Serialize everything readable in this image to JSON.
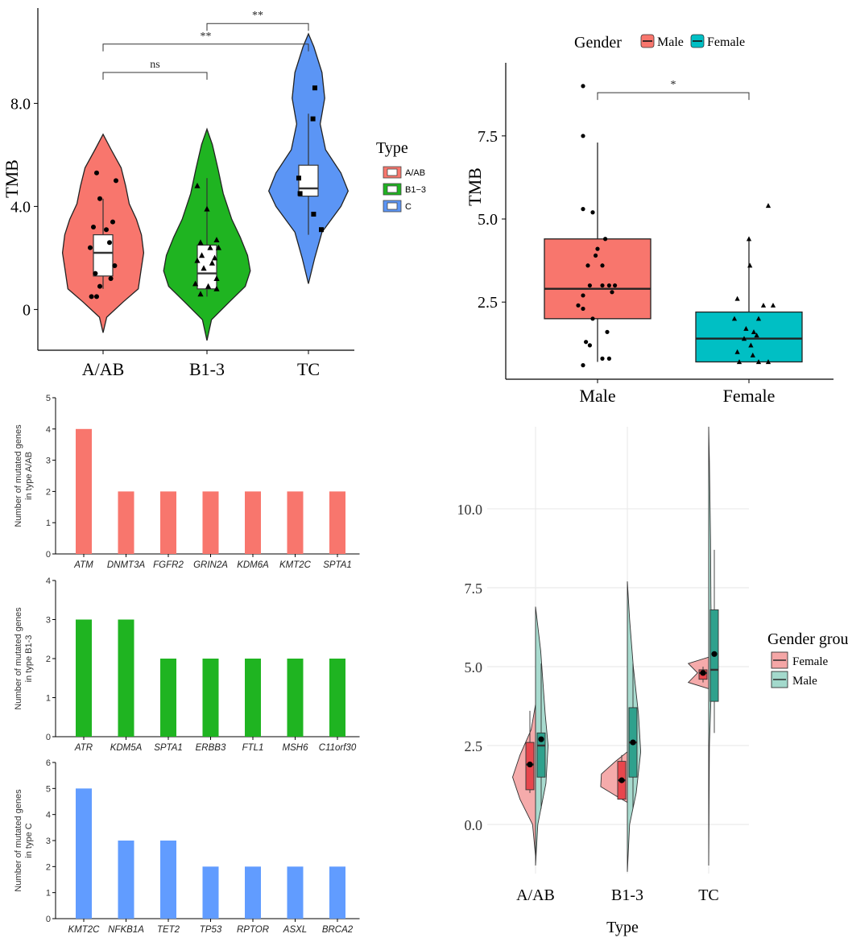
{
  "chart_data": [
    {
      "id": "A",
      "type": "violin",
      "ylabel": "TMB",
      "xlabel": "",
      "ylim": [
        -0.8,
        10.7
      ],
      "yticks": [
        "0",
        "4.0",
        "8.0"
      ],
      "ytick_values": [
        0,
        4,
        8
      ],
      "categories": [
        "A/AB",
        "B1-3",
        "TC"
      ],
      "colors": [
        "#F8766D",
        "#1FB421",
        "#5B95F5"
      ],
      "legend": {
        "title": "Type",
        "entries": [
          "A/AB",
          "B1−3",
          "C"
        ],
        "placement": "right"
      },
      "violins": [
        {
          "shape": [
            [
              -0.9,
              0
            ],
            [
              -0.3,
              0.08
            ],
            [
              0.3,
              0.45
            ],
            [
              0.8,
              0.78
            ],
            [
              1.5,
              0.84
            ],
            [
              2.2,
              0.9
            ],
            [
              2.9,
              0.85
            ],
            [
              3.5,
              0.74
            ],
            [
              4.1,
              0.58
            ],
            [
              4.8,
              0.5
            ],
            [
              5.5,
              0.4
            ],
            [
              6.2,
              0.18
            ],
            [
              6.8,
              0
            ]
          ]
        },
        {
          "shape": [
            [
              -1.2,
              0
            ],
            [
              -0.4,
              0.1
            ],
            [
              0.3,
              0.5
            ],
            [
              0.9,
              0.85
            ],
            [
              1.5,
              0.96
            ],
            [
              2.1,
              0.9
            ],
            [
              2.8,
              0.74
            ],
            [
              3.5,
              0.55
            ],
            [
              4.5,
              0.36
            ],
            [
              5.5,
              0.24
            ],
            [
              6.4,
              0.12
            ],
            [
              7.0,
              0
            ]
          ]
        },
        {
          "shape": [
            [
              1.0,
              0
            ],
            [
              2.0,
              0.14
            ],
            [
              3.0,
              0.3
            ],
            [
              4.0,
              0.72
            ],
            [
              4.6,
              0.88
            ],
            [
              5.3,
              0.72
            ],
            [
              6.2,
              0.38
            ],
            [
              7.2,
              0.26
            ],
            [
              8.2,
              0.36
            ],
            [
              9.2,
              0.3
            ],
            [
              10.2,
              0.12
            ],
            [
              10.7,
              0
            ]
          ]
        }
      ],
      "boxes": [
        {
          "q1": 1.3,
          "median": 2.2,
          "q3": 2.9,
          "wmin": 0.8,
          "wmax": 4.3
        },
        {
          "q1": 0.8,
          "median": 1.4,
          "q3": 2.5,
          "wmin": 0.5,
          "wmax": 5.1
        },
        {
          "q1": 4.4,
          "median": 4.7,
          "q3": 5.6,
          "wmin": 2.9,
          "wmax": 7.6
        }
      ],
      "points": [
        [
          [
            -0.1,
            5.3
          ],
          [
            0.2,
            5.0
          ],
          [
            -0.05,
            4.3
          ],
          [
            -0.15,
            3.2
          ],
          [
            0.15,
            3.4
          ],
          [
            0.05,
            3.1
          ],
          [
            -0.2,
            2.4
          ],
          [
            0.1,
            2.6
          ],
          [
            0.18,
            1.7
          ],
          [
            -0.12,
            1.4
          ],
          [
            0.12,
            1.2
          ],
          [
            -0.05,
            0.9
          ],
          [
            -0.18,
            0.5
          ],
          [
            -0.1,
            0.5
          ]
        ],
        [
          [
            -0.15,
            4.8
          ],
          [
            0,
            3.9
          ],
          [
            0.15,
            2.7
          ],
          [
            -0.1,
            2.6
          ],
          [
            0.05,
            2.4
          ],
          [
            0.18,
            2.4
          ],
          [
            -0.08,
            2.1
          ],
          [
            0.12,
            2.0
          ],
          [
            -0.15,
            1.9
          ],
          [
            0.08,
            1.8
          ],
          [
            -0.05,
            1.6
          ],
          [
            0.15,
            1.2
          ],
          [
            -0.18,
            1.0
          ],
          [
            0.02,
            0.9
          ],
          [
            0.15,
            0.8
          ],
          [
            -0.1,
            0.6
          ]
        ],
        [
          [
            0.1,
            8.6
          ],
          [
            0.07,
            7.4
          ],
          [
            -0.15,
            5.1
          ],
          [
            -0.13,
            4.5
          ],
          [
            0.08,
            3.7
          ],
          [
            0.2,
            3.1
          ]
        ]
      ],
      "point_shapes": [
        "circle",
        "triangle",
        "square"
      ],
      "comparisons": [
        {
          "from": 0,
          "to": 1,
          "y": 9.2,
          "label": "ns"
        },
        {
          "from": 0,
          "to": 2,
          "y": 10.3,
          "label": "**"
        },
        {
          "from": 1,
          "to": 2,
          "y": 11.1,
          "label": "**"
        }
      ]
    },
    {
      "id": "B",
      "type": "box",
      "ylabel": "TMB",
      "xlabel": "",
      "ylim": [
        0.3,
        9.7
      ],
      "yticks": [
        "2.5",
        "5.0",
        "7.5"
      ],
      "ytick_values": [
        2.5,
        5.0,
        7.5
      ],
      "categories": [
        "Male",
        "Female"
      ],
      "colors": [
        "#F8766D",
        "#00BFC4"
      ],
      "legend": {
        "title": "Gender",
        "entries": [
          "Male",
          "Female"
        ],
        "placement": "top"
      },
      "boxes": [
        {
          "q1": 2.0,
          "median": 2.9,
          "q3": 4.4,
          "wmin": 0.7,
          "wmax": 7.3
        },
        {
          "q1": 0.7,
          "median": 1.4,
          "q3": 2.2,
          "wmin": 0.7,
          "wmax": 4.4
        }
      ],
      "points": [
        [
          [
            -0.15,
            9.0
          ],
          [
            -0.15,
            7.5
          ],
          [
            -0.15,
            5.3
          ],
          [
            -0.05,
            5.2
          ],
          [
            0.08,
            4.4
          ],
          [
            0,
            4.1
          ],
          [
            -0.02,
            3.9
          ],
          [
            -0.1,
            3.6
          ],
          [
            0.05,
            3.6
          ],
          [
            -0.08,
            3.0
          ],
          [
            0.05,
            3.0
          ],
          [
            0.12,
            3.0
          ],
          [
            0.18,
            3.0
          ],
          [
            0.15,
            2.8
          ],
          [
            -0.15,
            2.7
          ],
          [
            -0.2,
            2.4
          ],
          [
            -0.15,
            2.3
          ],
          [
            -0.05,
            2.0
          ],
          [
            0.1,
            1.6
          ],
          [
            -0.12,
            1.3
          ],
          [
            -0.08,
            1.2
          ],
          [
            0.12,
            0.8
          ],
          [
            0.05,
            0.8
          ],
          [
            -0.15,
            0.6
          ]
        ],
        [
          [
            0.2,
            5.4
          ],
          [
            0,
            4.4
          ],
          [
            0.01,
            3.6
          ],
          [
            -0.12,
            2.6
          ],
          [
            -0.15,
            2.0
          ],
          [
            0.1,
            2.0
          ],
          [
            0.15,
            2.4
          ],
          [
            0.25,
            2.4
          ],
          [
            -0.03,
            1.7
          ],
          [
            0.05,
            1.6
          ],
          [
            0.08,
            1.5
          ],
          [
            -0.05,
            1.4
          ],
          [
            0.02,
            1.2
          ],
          [
            -0.12,
            1.0
          ],
          [
            0.04,
            0.9
          ],
          [
            -0.1,
            0.7
          ],
          [
            0.1,
            0.7
          ],
          [
            0.2,
            0.7
          ]
        ]
      ],
      "point_shapes": [
        "circle",
        "triangle"
      ],
      "comparisons": [
        {
          "from": 0,
          "to": 1,
          "y": 8.8,
          "label": "*"
        }
      ]
    },
    {
      "id": "C1",
      "type": "bar",
      "ylabel": "Number of mutated genes in type A/AB",
      "ylim": [
        0,
        5
      ],
      "yticks": [
        "0",
        "1",
        "2",
        "3",
        "4",
        "5"
      ],
      "ytick_values": [
        0,
        1,
        2,
        3,
        4,
        5
      ],
      "categories": [
        "ATM",
        "DNMT3A",
        "FGFR2",
        "GRIN2A",
        "KDM6A",
        "KMT2C",
        "SPTA1"
      ],
      "values": [
        4,
        2,
        2,
        2,
        2,
        2,
        2
      ],
      "color": "#F8766D"
    },
    {
      "id": "C2",
      "type": "bar",
      "ylabel": "Number of mutated genes in type B1-3",
      "ylim": [
        0,
        4
      ],
      "yticks": [
        "0",
        "1",
        "2",
        "3",
        "4"
      ],
      "ytick_values": [
        0,
        1,
        2,
        3,
        4
      ],
      "categories": [
        "ATR",
        "KDM5A",
        "SPTA1",
        "ERBB3",
        "FTL1",
        "MSH6",
        "C11orf30"
      ],
      "values": [
        3,
        3,
        2,
        2,
        2,
        2,
        2
      ],
      "color": "#1FB421"
    },
    {
      "id": "C3",
      "type": "bar",
      "ylabel": "Number of mutated genes in type C",
      "ylim": [
        0,
        6
      ],
      "yticks": [
        "0",
        "1",
        "2",
        "3",
        "4",
        "5",
        "6"
      ],
      "ytick_values": [
        0,
        1,
        2,
        3,
        4,
        5,
        6
      ],
      "categories": [
        "KMT2C",
        "NFKB1A",
        "TET2",
        "TP53",
        "RPTOR",
        "ASXL",
        "BRCA2"
      ],
      "values": [
        5,
        3,
        3,
        2,
        2,
        2,
        2
      ],
      "color": "#619CFF"
    },
    {
      "id": "D",
      "type": "split-violin",
      "xlabel": "Type",
      "ylabel": "",
      "ylim": [
        -1.3,
        12.6
      ],
      "yticks": [
        "0.0",
        "2.5",
        "5.0",
        "7.5",
        "10.0"
      ],
      "ytick_values": [
        0,
        2.5,
        5.0,
        7.5,
        10.0
      ],
      "categories": [
        "A/AB",
        "B1-3",
        "TC"
      ],
      "colors": {
        "Female": "#F4A6A6",
        "Male": "#A3D9CC",
        "FemaleBox": "#E7474D",
        "MaleBox": "#2FA18D"
      },
      "legend": {
        "title": "Gender group",
        "entries": [
          "Female",
          "Male"
        ],
        "placement": "right"
      },
      "female": [
        {
          "shape": [
            [
              -1.0,
              0
            ],
            [
              0,
              0.08
            ],
            [
              0.8,
              0.42
            ],
            [
              1.5,
              0.62
            ],
            [
              2.2,
              0.42
            ],
            [
              3.0,
              0.12
            ],
            [
              3.8,
              0
            ]
          ],
          "box": {
            "q1": 1.1,
            "median": 1.9,
            "q3": 2.6,
            "wmin": 1.0,
            "wmax": 3.6
          },
          "mean": 1.9
        },
        {
          "shape": [
            [
              0.7,
              0
            ],
            [
              0.9,
              0.3
            ],
            [
              1.2,
              0.72
            ],
            [
              1.6,
              0.7
            ],
            [
              2.0,
              0.32
            ],
            [
              2.3,
              0
            ]
          ],
          "box": {
            "q1": 0.8,
            "median": 1.4,
            "q3": 2.0,
            "wmin": 0.8,
            "wmax": 2.2
          },
          "mean": 1.4
        },
        {
          "shape": [
            [
              4.3,
              0
            ],
            [
              4.5,
              0.55
            ],
            [
              4.8,
              0.3
            ],
            [
              5.1,
              0.55
            ],
            [
              5.3,
              0
            ]
          ],
          "box": {
            "q1": 4.6,
            "median": 4.8,
            "q3": 4.9,
            "wmin": 4.5,
            "wmax": 5.0
          },
          "mean": 4.8
        }
      ],
      "male": [
        {
          "shape": [
            [
              -1.3,
              0
            ],
            [
              0,
              0.06
            ],
            [
              1.3,
              0.28
            ],
            [
              2.5,
              0.34
            ],
            [
              3.5,
              0.26
            ],
            [
              4.5,
              0.2
            ],
            [
              5.5,
              0.14
            ],
            [
              6.9,
              0
            ]
          ],
          "box": {
            "q1": 1.5,
            "median": 2.5,
            "q3": 2.9,
            "wmin": 0.5,
            "wmax": 5.1
          },
          "mean": 2.7
        },
        {
          "shape": [
            [
              -1.5,
              0
            ],
            [
              0,
              0.06
            ],
            [
              1.0,
              0.24
            ],
            [
              2.3,
              0.36
            ],
            [
              3.5,
              0.3
            ],
            [
              5.0,
              0.16
            ],
            [
              6.5,
              0.06
            ],
            [
              7.7,
              0
            ]
          ],
          "box": {
            "q1": 1.5,
            "median": 2.6,
            "q3": 3.7,
            "wmin": 0.5,
            "wmax": 5.1
          },
          "mean": 2.6
        },
        {
          "shape": [
            [
              -1.3,
              0
            ],
            [
              2.5,
              0.02
            ],
            [
              4.0,
              0.06
            ],
            [
              4.8,
              0.1
            ],
            [
              5.5,
              0.08
            ],
            [
              7.0,
              0.06
            ],
            [
              9.0,
              0.05
            ],
            [
              11.5,
              0.02
            ],
            [
              12.6,
              0
            ]
          ],
          "box": {
            "q1": 3.9,
            "median": 4.9,
            "q3": 6.8,
            "wmin": 2.9,
            "wmax": 8.7
          },
          "mean": 5.4
        }
      ]
    }
  ]
}
